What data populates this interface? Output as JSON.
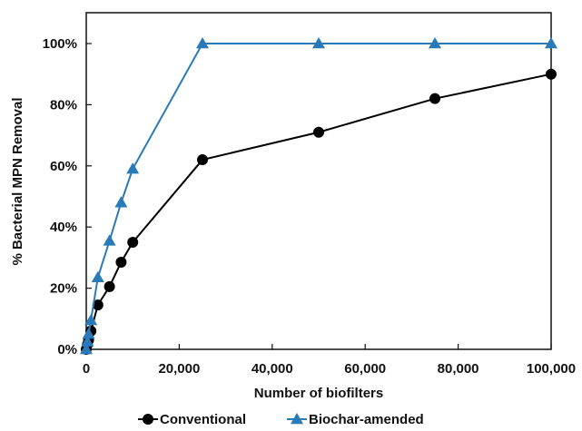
{
  "chart_data": {
    "type": "line",
    "xlabel": "Number of biofilters",
    "ylabel": "% Bacterial MPN Removal",
    "xlim": [
      0,
      100000
    ],
    "ylim": [
      0,
      1
    ],
    "x_ticks": [
      "0",
      "20,000",
      "40,000",
      "60,000",
      "80,000",
      "100,000"
    ],
    "x_tick_values": [
      0,
      20000,
      40000,
      60000,
      80000,
      100000
    ],
    "y_ticks": [
      "0%",
      "20%",
      "40%",
      "60%",
      "80%",
      "100%"
    ],
    "y_tick_values": [
      0,
      0.2,
      0.4,
      0.6,
      0.8,
      1.0
    ],
    "grid": false,
    "legend_position": "bottom",
    "series": [
      {
        "name": "Conventional",
        "color": "#000000",
        "marker": "circle",
        "x": [
          0,
          250,
          500,
          1000,
          2500,
          5000,
          7500,
          10000,
          25000,
          50000,
          75000,
          100000
        ],
        "y": [
          0.0,
          0.015,
          0.03,
          0.06,
          0.145,
          0.205,
          0.285,
          0.35,
          0.62,
          0.71,
          0.82,
          0.9
        ]
      },
      {
        "name": "Biochar-amended",
        "color": "#2a7ab9",
        "marker": "triangle",
        "x": [
          0,
          250,
          500,
          1000,
          2500,
          5000,
          7500,
          10000,
          25000,
          50000,
          75000,
          100000
        ],
        "y": [
          0.0,
          0.025,
          0.05,
          0.095,
          0.235,
          0.355,
          0.48,
          0.59,
          1.0,
          1.0,
          1.0,
          1.0
        ]
      }
    ]
  }
}
